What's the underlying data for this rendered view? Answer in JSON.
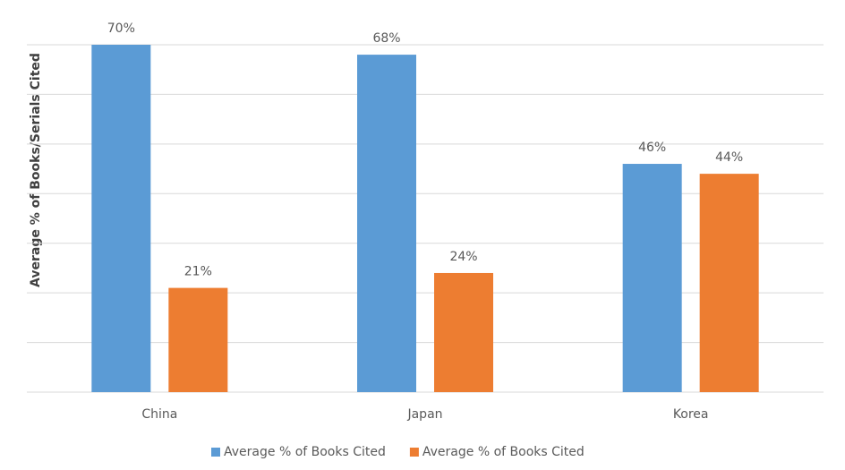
{
  "chart_data": {
    "type": "bar",
    "y_label": "Average % of Books/Serials Cited",
    "categories": [
      "China",
      "Japan",
      "Korea"
    ],
    "series": [
      {
        "name": "Average % of Books Cited",
        "color": "#5b9bd5",
        "values": [
          70,
          68,
          46
        ],
        "value_labels": [
          "70%",
          "68%",
          "46%"
        ]
      },
      {
        "name": "Average % of Books Cited",
        "color": "#ed7d31",
        "values": [
          21,
          24,
          44
        ],
        "value_labels": [
          "21%",
          "24%",
          "44%"
        ]
      }
    ],
    "ylim": [
      0,
      70
    ],
    "yticks": [
      0,
      10,
      20,
      30,
      40,
      50,
      60,
      70
    ],
    "grid": true,
    "show_ytick_labels": false,
    "legend": "bottom"
  }
}
